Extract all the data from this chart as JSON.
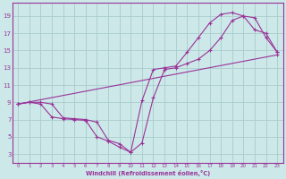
{
  "xlabel": "Windchill (Refroidissement éolien,°C)",
  "background_color": "#cce8e8",
  "grid_color": "#aacccc",
  "line_color": "#993399",
  "xlim": [
    -0.5,
    23.5
  ],
  "ylim": [
    2,
    20.5
  ],
  "xticks": [
    0,
    1,
    2,
    3,
    4,
    5,
    6,
    7,
    8,
    9,
    10,
    11,
    12,
    13,
    14,
    15,
    16,
    17,
    18,
    19,
    20,
    21,
    22,
    23
  ],
  "yticks": [
    3,
    5,
    7,
    9,
    11,
    13,
    15,
    17,
    19
  ],
  "line1_x": [
    0,
    1,
    2,
    3,
    4,
    5,
    6,
    7,
    8,
    9,
    10,
    11,
    12,
    13,
    14,
    15,
    16,
    17,
    18,
    19,
    20,
    21,
    22,
    23
  ],
  "line1_y": [
    8.8,
    9.0,
    9.0,
    8.8,
    7.2,
    7.1,
    7.0,
    6.7,
    4.6,
    4.2,
    3.2,
    9.2,
    12.8,
    13.0,
    13.2,
    14.8,
    16.5,
    18.2,
    19.2,
    19.4,
    19.0,
    17.4,
    17.0,
    14.8
  ],
  "line2_x": [
    0,
    1,
    2,
    3,
    4,
    5,
    6,
    7,
    8,
    9,
    10,
    11,
    12,
    13,
    14,
    15,
    16,
    17,
    18,
    19,
    20,
    21,
    22,
    23
  ],
  "line2_y": [
    8.8,
    9.0,
    8.8,
    7.3,
    7.1,
    7.0,
    6.9,
    5.0,
    4.5,
    3.8,
    3.2,
    4.3,
    9.5,
    12.8,
    13.0,
    13.5,
    14.0,
    15.0,
    16.5,
    18.5,
    19.0,
    18.8,
    16.5,
    14.8
  ],
  "line3_x": [
    0,
    23
  ],
  "line3_y": [
    8.8,
    14.5
  ]
}
